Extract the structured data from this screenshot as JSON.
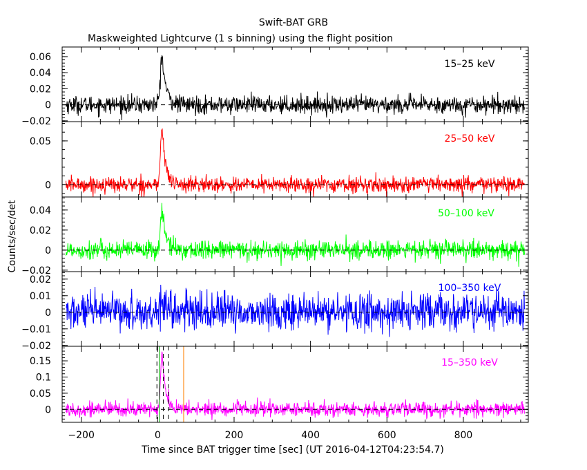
{
  "figure": {
    "title": "Swift-BAT GRB",
    "subtitle": "Maskweighted Lightcurve (1 s binning) using the flight position",
    "xlabel": "Time since BAT trigger time [sec] (UT 2016-04-12T04:23:54.7)",
    "ylabel": "Counts/sec/det"
  },
  "chart_data": [
    {
      "type": "line",
      "name": "15-25 keV",
      "label": "15–25 keV",
      "color": "#000000",
      "xlim": [
        -250,
        970
      ],
      "ylim": [
        -0.021,
        0.072
      ],
      "yticks": [
        -0.02,
        0,
        0.02,
        0.04,
        0.06
      ],
      "ytick_labels": [
        "−0.02",
        "0",
        "0.02",
        "0.04",
        "0.06"
      ],
      "baseline": 0,
      "noise_sigma": 0.0055,
      "time_range": [
        -240,
        960
      ],
      "peak": {
        "t": 12,
        "height": 0.06,
        "rise": 7,
        "decay": 10
      },
      "vlines": []
    },
    {
      "type": "line",
      "name": "25-50 keV",
      "label": "25–50 keV",
      "color": "#ff0000",
      "xlim": [
        -250,
        970
      ],
      "ylim": [
        -0.014,
        0.072
      ],
      "yticks": [
        0,
        0.05
      ],
      "ytick_labels": [
        "0",
        "0.05"
      ],
      "baseline": 0,
      "noise_sigma": 0.0045,
      "time_range": [
        -240,
        960
      ],
      "peak": {
        "t": 12,
        "height": 0.066,
        "rise": 6,
        "decay": 9
      },
      "vlines": []
    },
    {
      "type": "line",
      "name": "50-100 keV",
      "label": "50–100 keV",
      "color": "#00ff00",
      "xlim": [
        -250,
        970
      ],
      "ylim": [
        -0.0215,
        0.053
      ],
      "yticks": [
        -0.02,
        0,
        0.02,
        0.04
      ],
      "ytick_labels": [
        "−0.02",
        "0",
        "0.02",
        "0.04"
      ],
      "baseline": 0,
      "noise_sigma": 0.0048,
      "time_range": [
        -240,
        960
      ],
      "peak": {
        "t": 12,
        "height": 0.04,
        "rise": 6,
        "decay": 10
      },
      "vlines": []
    },
    {
      "type": "line",
      "name": "100-350 keV",
      "label": "100–350 keV",
      "color": "#0000ff",
      "xlim": [
        -250,
        970
      ],
      "ylim": [
        -0.0205,
        0.0245
      ],
      "yticks": [
        -0.02,
        -0.01,
        0,
        0.01,
        0.02
      ],
      "ytick_labels": [
        "−0.02",
        "−0.01",
        "0",
        "0.01",
        "0.02"
      ],
      "baseline": 0,
      "noise_sigma": 0.0055,
      "time_range": [
        -240,
        960
      ],
      "peak": {
        "t": 12,
        "height": 0.01,
        "rise": 8,
        "decay": 12
      },
      "vlines": []
    },
    {
      "type": "line",
      "name": "15-350 keV",
      "label": "15–350 keV",
      "color": "#ff00ff",
      "xlim": [
        -250,
        970
      ],
      "ylim": [
        -0.04,
        0.195
      ],
      "yticks": [
        0,
        0.05,
        0.1,
        0.15
      ],
      "ytick_labels": [
        "0",
        "0.05",
        "0.1",
        "0.15"
      ],
      "baseline": 0,
      "noise_sigma": 0.0115,
      "time_range": [
        -240,
        960
      ],
      "peak": {
        "t": 12,
        "height": 0.17,
        "rise": 6,
        "decay": 9
      },
      "vlines": [
        {
          "t": -2,
          "color": "#000000",
          "dash": true
        },
        {
          "t": 4,
          "color": "#00aa00",
          "dash": false
        },
        {
          "t": 15,
          "color": "#000000",
          "dash": true
        },
        {
          "t": 28,
          "color": "#000000",
          "dash": true
        },
        {
          "t": 68,
          "color": "#ff7f00",
          "dash": false
        }
      ]
    }
  ],
  "xaxis": {
    "ticks": [
      -200,
      0,
      200,
      400,
      600,
      800
    ],
    "tick_labels": [
      "−200",
      "0",
      "200",
      "400",
      "600",
      "800"
    ],
    "minor_step": 50
  }
}
